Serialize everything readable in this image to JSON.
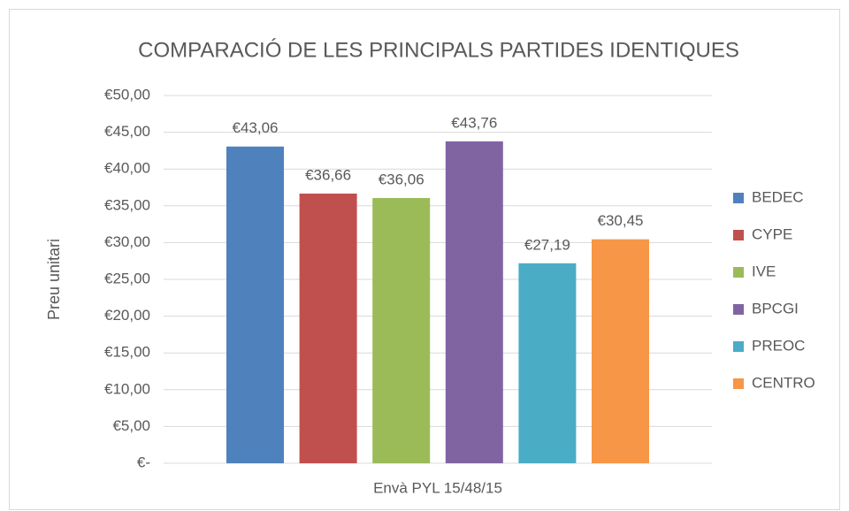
{
  "chart_data": {
    "type": "bar",
    "title": "COMPARACIÓ DE LES PRINCIPALS PARTIDES IDENTIQUES",
    "y_label": "Preu unitari",
    "categories": [
      "Envà PYL 15/48/15"
    ],
    "series": [
      {
        "name": "BEDEC",
        "color": "#4f81bd",
        "values": [
          43.06
        ],
        "value_labels": [
          "€43,06"
        ]
      },
      {
        "name": "CYPE",
        "color": "#c0504d",
        "values": [
          36.66
        ],
        "value_labels": [
          "€36,66"
        ]
      },
      {
        "name": "IVE",
        "color": "#9bbb59",
        "values": [
          36.06
        ],
        "value_labels": [
          "€36,06"
        ]
      },
      {
        "name": "BPCGI",
        "color": "#8064a2",
        "values": [
          43.76
        ],
        "value_labels": [
          "€43,76"
        ]
      },
      {
        "name": "PREOC",
        "color": "#4bacc6",
        "values": [
          27.19
        ],
        "value_labels": [
          "€27,19"
        ]
      },
      {
        "name": "CENTRO",
        "color": "#f79646",
        "values": [
          30.45
        ],
        "value_labels": [
          "€30,45"
        ]
      }
    ],
    "ylim": [
      0,
      50
    ],
    "yticks": [
      {
        "value": 0,
        "label": "€-"
      },
      {
        "value": 5,
        "label": "€5,00"
      },
      {
        "value": 10,
        "label": "€10,00"
      },
      {
        "value": 15,
        "label": "€15,00"
      },
      {
        "value": 20,
        "label": "€20,00"
      },
      {
        "value": 25,
        "label": "€25,00"
      },
      {
        "value": 30,
        "label": "€30,00"
      },
      {
        "value": 35,
        "label": "€35,00"
      },
      {
        "value": 40,
        "label": "€40,00"
      },
      {
        "value": 45,
        "label": "€45,00"
      },
      {
        "value": 50,
        "label": "€50,00"
      }
    ],
    "grid": true,
    "legend": "right"
  }
}
